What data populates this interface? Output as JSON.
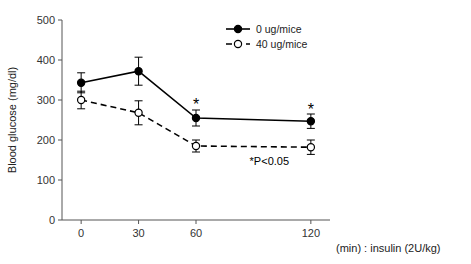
{
  "chart_data": {
    "type": "line",
    "x": [
      0,
      30,
      60,
      120
    ],
    "series": [
      {
        "name": "0 ug/mice",
        "color": "#000000",
        "values": [
          343,
          372,
          255,
          247
        ],
        "errors": [
          25,
          35,
          20,
          18
        ],
        "marker": "circle",
        "line_style": "solid"
      },
      {
        "name": "40 ug/mice",
        "color": "#000000",
        "values": [
          300,
          268,
          185,
          182
        ],
        "errors": [
          22,
          30,
          15,
          18
        ],
        "marker": "open-circle",
        "line_style": "dashed"
      }
    ],
    "annotations": [
      {
        "text": "*",
        "x": 60,
        "y": 285
      },
      {
        "text": "*",
        "x": 120,
        "y": 272
      },
      {
        "text": "*P<0.05",
        "x": 88,
        "y": 148
      }
    ],
    "ylabel": "Blood glucose (mg/dl)",
    "xlabel": "(min) : insulin (2U/kg)",
    "xlim": [
      -10,
      130
    ],
    "xticks": [
      0,
      30,
      60,
      120
    ],
    "ylim": [
      0,
      500
    ],
    "yticks": [
      0,
      100,
      200,
      300,
      400,
      500
    ],
    "grid": false,
    "legend": "upper right"
  }
}
